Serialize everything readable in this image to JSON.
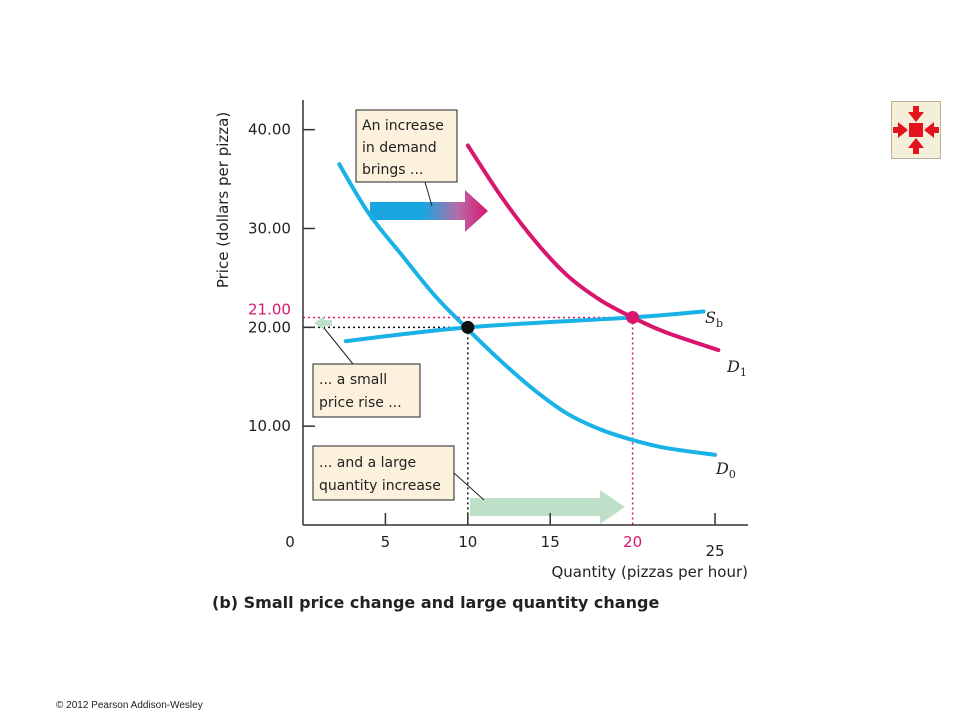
{
  "chart_data": {
    "type": "line",
    "xlabel": "Quantity (pizzas per hour)",
    "ylabel": "Price (dollars per pizza)",
    "xlim": [
      0,
      27
    ],
    "ylim": [
      0,
      43
    ],
    "x_ticks": [
      "0",
      "5",
      "10",
      "15",
      "20",
      "25"
    ],
    "x_tick_values": [
      0,
      5,
      10,
      15,
      20,
      25
    ],
    "y_ticks": [
      "10.00",
      "20.00",
      "30.00",
      "40.00"
    ],
    "y_tick_values": [
      10,
      20,
      30,
      40
    ],
    "grid": false,
    "series": [
      {
        "name": "D0",
        "label_main": "D",
        "label_sub": "0",
        "color": "#19b2e6",
        "points": [
          [
            2.2,
            36.5
          ],
          [
            4,
            31.5
          ],
          [
            6,
            27.3
          ],
          [
            8,
            23.2
          ],
          [
            10,
            19.8
          ],
          [
            12,
            16.6
          ],
          [
            14,
            13.7
          ],
          [
            16,
            11.3
          ],
          [
            18,
            9.7
          ],
          [
            20,
            8.6
          ],
          [
            22,
            7.8
          ],
          [
            25,
            7.1
          ]
        ]
      },
      {
        "name": "D1",
        "label_main": "D",
        "label_sub": "1",
        "color": "#d8166e",
        "points": [
          [
            10,
            38.4
          ],
          [
            12,
            33.3
          ],
          [
            14,
            28.9
          ],
          [
            16,
            25.3
          ],
          [
            18,
            22.8
          ],
          [
            20,
            21
          ],
          [
            22,
            19.5
          ],
          [
            25.2,
            17.7
          ]
        ]
      },
      {
        "name": "Sb",
        "label_main": "S",
        "label_sub": "b",
        "color": "#19b2e6",
        "points": [
          [
            2.6,
            18.6
          ],
          [
            10,
            20
          ],
          [
            20,
            21
          ],
          [
            24.3,
            21.6
          ]
        ]
      }
    ],
    "equilibria": [
      {
        "x": 10,
        "y": 20,
        "color": "#111111"
      },
      {
        "x": 20,
        "y": 21,
        "color": "#d8166e"
      }
    ],
    "highlight_ticks": {
      "x": "20",
      "y": "21.00",
      "y_value": 21,
      "color": "#d8166e"
    },
    "annotations": [
      {
        "id": "demand",
        "lines": [
          "An increase",
          "in demand",
          "brings ..."
        ]
      },
      {
        "id": "price",
        "lines": [
          "... a small",
          "price rise ..."
        ]
      },
      {
        "id": "quantity",
        "lines": [
          "... and a large",
          "quantity increase"
        ]
      }
    ],
    "caption": "(b) Small price change and large quantity change"
  },
  "footer": {
    "copyright": "© 2012 Pearson Addison-Wesley"
  },
  "nav": {
    "icon": "collapse-arrows-icon",
    "color": "#e3141e"
  }
}
